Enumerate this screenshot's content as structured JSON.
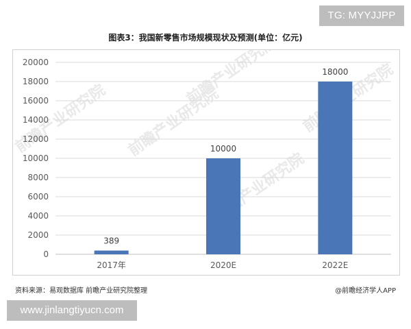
{
  "badges": {
    "top_right": "TG: MYYJJPP",
    "bottom_left": "www.jinlangtiyucn.com"
  },
  "watermark": {
    "text": "前瞻产业研究院"
  },
  "footer": {
    "source": "资料来源：易观数据库 前瞻产业研究院整理",
    "credit": "@前瞻经济学人APP"
  },
  "colors": {
    "bar": "#4a76b8",
    "grid": "#d9d9d9",
    "axis": "#bfbfbf"
  },
  "chart_data": {
    "type": "bar",
    "title": "图表3：我国新零售市场规模现状及预测(单位：亿元)",
    "xlabel": "",
    "ylabel": "",
    "categories": [
      "2017年",
      "2020E",
      "2022E"
    ],
    "values": [
      389,
      10000,
      18000
    ],
    "data_labels": [
      "389",
      "10000",
      "18000"
    ],
    "ylim": [
      0,
      20000
    ],
    "yticks": [
      0,
      2000,
      4000,
      6000,
      8000,
      10000,
      12000,
      14000,
      16000,
      18000,
      20000
    ],
    "grid": true,
    "legend": "none"
  }
}
